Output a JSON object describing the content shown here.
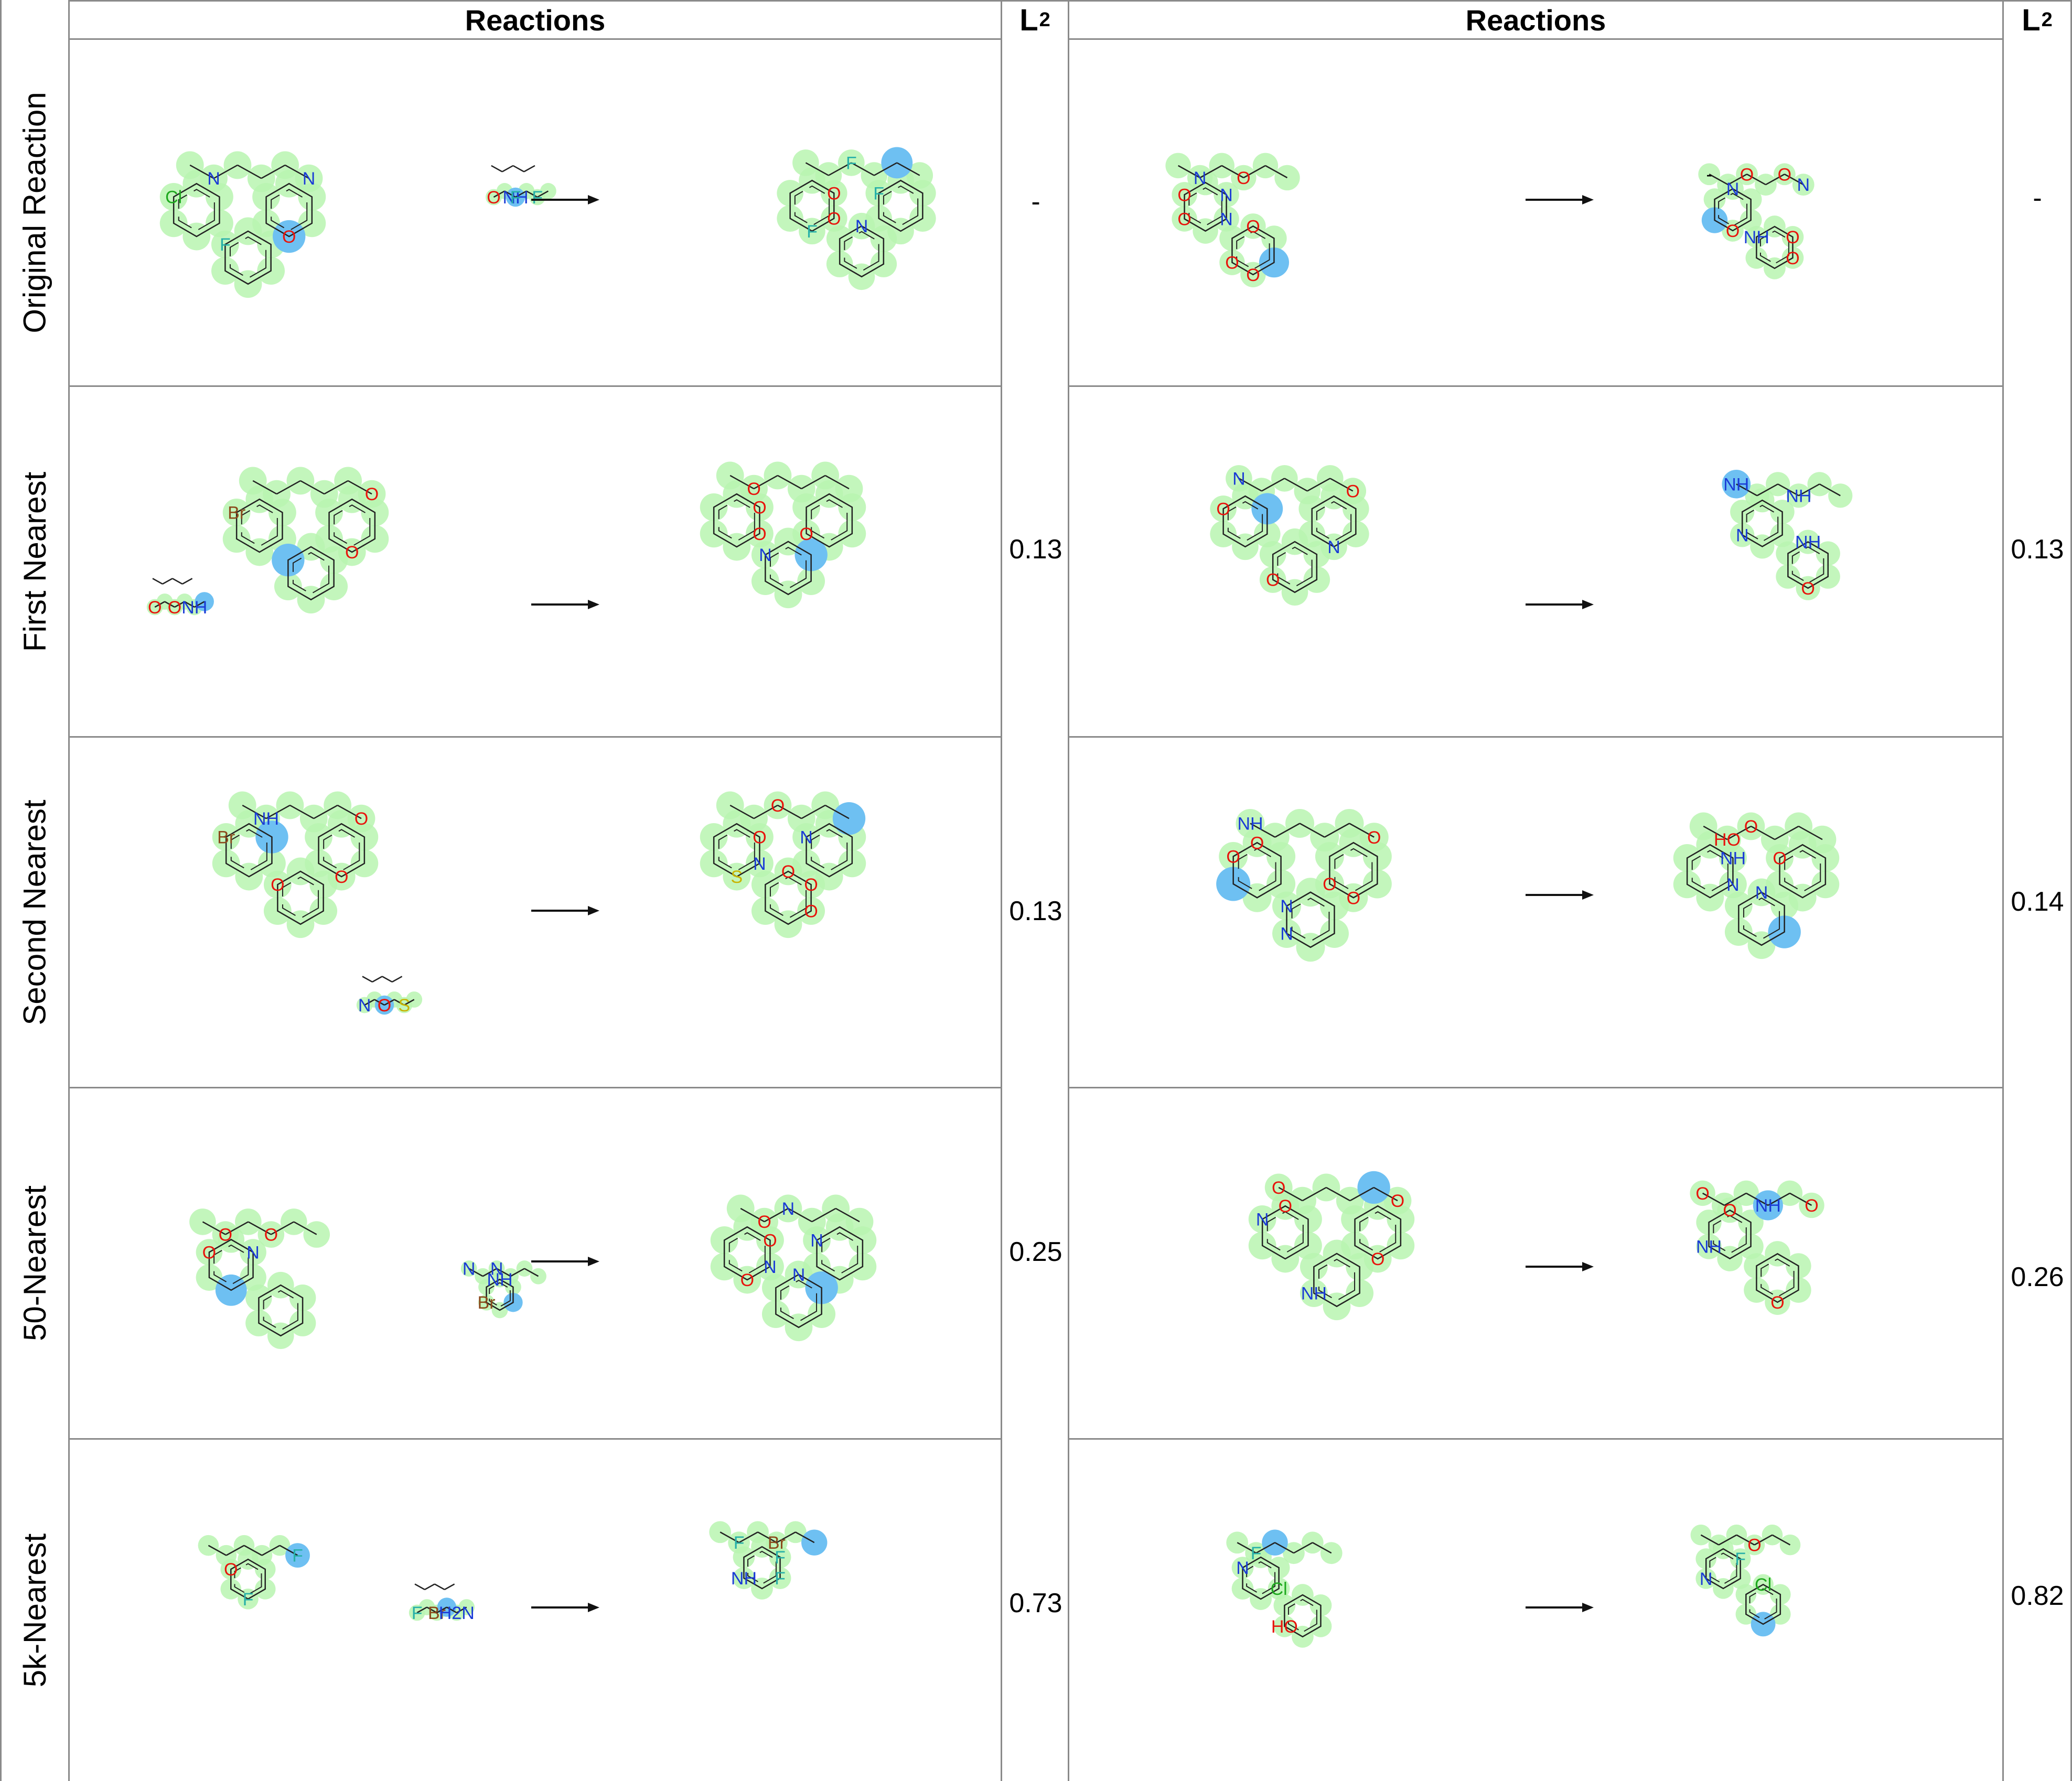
{
  "headers": {
    "left_reactions": "Reactions",
    "left_l2_main": "L",
    "left_l2_sub": "2",
    "right_reactions": "Reactions",
    "right_l2_main": "L",
    "right_l2_sub": "2"
  },
  "rows": [
    {
      "label": "Original Reaction",
      "left_l2": "-",
      "right_l2": "-",
      "left_atom_labels": [
        "Cl",
        "NH",
        "O",
        "O",
        "N",
        "F",
        "F",
        "F",
        "N",
        "O",
        "O",
        "N",
        "F",
        "F",
        "F"
      ],
      "right_atom_labels": [
        "O",
        "O",
        "N",
        "N",
        "N",
        "O",
        "O",
        "O",
        "O",
        "-",
        "N",
        "N",
        "NH",
        "O",
        "O",
        "O",
        "O",
        "O"
      ]
    },
    {
      "label": "First Nearest",
      "left_l2": "0.13",
      "right_l2": "0.13",
      "left_atom_labels": [
        "Br",
        "O",
        "O",
        "O",
        "O",
        "NH",
        "N",
        "O",
        "O",
        "O",
        "O"
      ],
      "right_atom_labels": [
        "O",
        "O",
        "N",
        "N",
        "O",
        "NH",
        "NH",
        "N",
        "O",
        "NH"
      ]
    },
    {
      "label": "Second Nearest",
      "left_l2": "0.13",
      "right_l2": "0.14",
      "left_atom_labels": [
        "Br",
        "O",
        "O",
        "N",
        "O",
        "S",
        "O",
        "O",
        "NH",
        "N",
        "O",
        "O",
        "N",
        "O",
        "S",
        "O",
        "O"
      ],
      "right_atom_labels": [
        "O",
        "N",
        "O",
        "NH",
        "O",
        "O",
        "N",
        "O",
        "HO",
        "N",
        "NH",
        "N",
        "O",
        "O"
      ]
    },
    {
      "label": "50-Nearest",
      "left_l2": "0.25",
      "right_l2": "0.26",
      "left_atom_labels": [
        "O",
        "N",
        "O",
        "N",
        "N",
        "NH",
        "O",
        "Br",
        "O",
        "N",
        "O",
        "N",
        "N",
        "N",
        "O"
      ],
      "right_atom_labels": [
        "N",
        "NH",
        "O",
        "O",
        "O",
        "O",
        "NH",
        "NH",
        "O",
        "O",
        "O",
        "O"
      ]
    },
    {
      "label": "5k-Nearest",
      "left_l2": "0.73",
      "right_l2": "0.82",
      "left_atom_labels": [
        "O",
        "Br",
        "F",
        "F",
        "F",
        "H2N",
        "Br",
        "NH",
        "F",
        "F",
        "F"
      ],
      "right_atom_labels": [
        "N",
        "HO",
        "F",
        "Cl",
        "F",
        "Cl",
        "O",
        "N"
      ]
    }
  ],
  "colors": {
    "highlight_green": "#b8f5b0",
    "highlight_blue": "#6ec0f2",
    "oxygen_red": "#e8140c",
    "nitrogen_blue": "#1a3bd6",
    "halogen_green": "#1ea81e",
    "fluorine_teal": "#27b0a8",
    "bromine_brown": "#8b4a1c",
    "sulfur_yellow": "#c8b400",
    "bond_gray": "#222222",
    "grid_gray": "#8a8a8a"
  },
  "icons": [
    "reaction-arrow-icon",
    "molecule-structure-icon"
  ]
}
